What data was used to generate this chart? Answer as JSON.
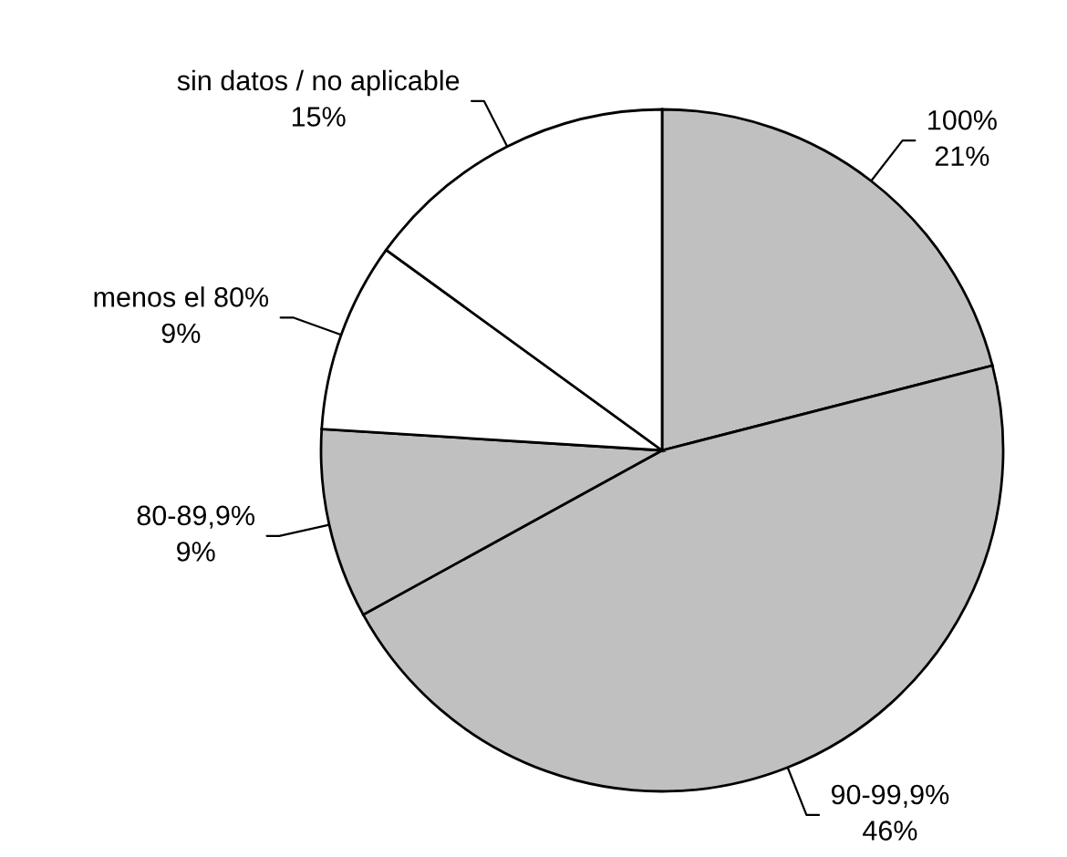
{
  "chart_data": {
    "type": "pie",
    "categories": [
      "100%",
      "90-99,9%",
      "80-89,9%",
      "menos el 80%",
      "sin datos / no aplicable"
    ],
    "values": [
      21,
      46,
      9,
      9,
      15
    ],
    "value_labels": [
      "21%",
      "46%",
      "9%",
      "9%",
      "15%"
    ],
    "colors": [
      "#c0c0c0",
      "#c0c0c0",
      "#c0c0c0",
      "#ffffff",
      "#ffffff"
    ]
  }
}
